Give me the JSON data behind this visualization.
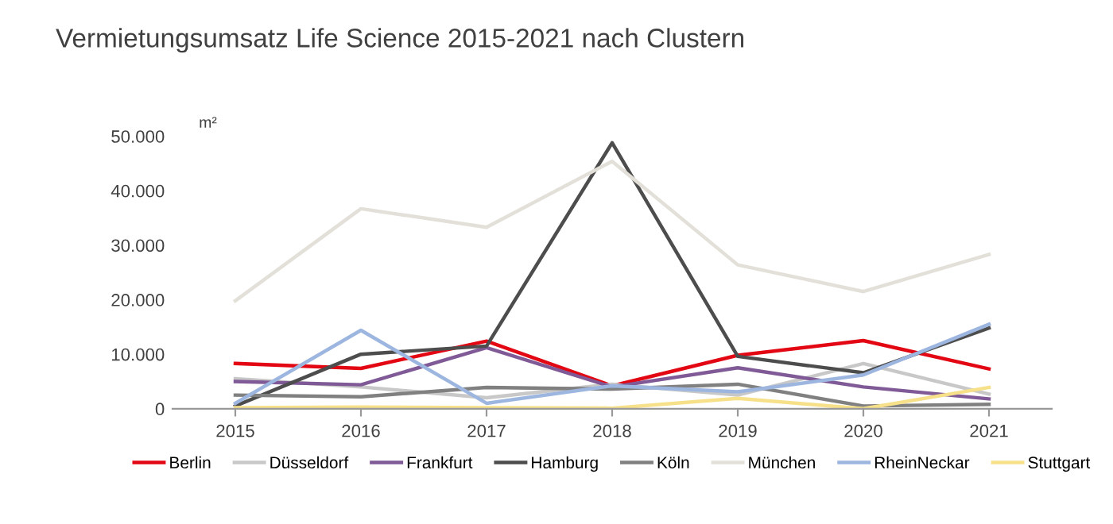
{
  "chart_data": {
    "type": "line",
    "title": "Vermietungsumsatz Life Science 2015-2021 nach Clustern",
    "ylabel": "m²",
    "categories": [
      "2015",
      "2016",
      "2017",
      "2018",
      "2019",
      "2020",
      "2021"
    ],
    "series": [
      {
        "name": "Berlin",
        "color": "#e30613",
        "values": [
          8300,
          7400,
          12400,
          4200,
          9800,
          12500,
          7300
        ]
      },
      {
        "name": "Düsseldorf",
        "color": "#c8c8c8",
        "values": [
          5500,
          4000,
          2000,
          4500,
          2500,
          8300,
          2700
        ]
      },
      {
        "name": "Frankfurt",
        "color": "#7f5a96",
        "values": [
          5000,
          4400,
          11200,
          4000,
          7500,
          4000,
          1800
        ]
      },
      {
        "name": "Hamburg",
        "color": "#4d4d4d",
        "values": [
          500,
          10000,
          11500,
          48800,
          9600,
          6600,
          14800
        ]
      },
      {
        "name": "Köln",
        "color": "#808080",
        "values": [
          2500,
          2200,
          3900,
          3600,
          4500,
          500,
          800
        ]
      },
      {
        "name": "München",
        "color": "#e2e0d8",
        "values": [
          19800,
          36700,
          33300,
          45400,
          26400,
          21500,
          28300
        ]
      },
      {
        "name": "RheinNeckar",
        "color": "#9db6e0",
        "values": [
          1000,
          14400,
          1000,
          4200,
          3100,
          6200,
          15500
        ]
      },
      {
        "name": "Stuttgart",
        "color": "#f7e08a",
        "values": [
          200,
          300,
          200,
          100,
          1900,
          0,
          3900
        ]
      }
    ],
    "ylim": [
      0,
      50000
    ],
    "yticks": [
      {
        "value": 0,
        "label": "0"
      },
      {
        "value": 10000,
        "label": "10.000"
      },
      {
        "value": 20000,
        "label": "20.000"
      },
      {
        "value": 30000,
        "label": "30.000"
      },
      {
        "value": 40000,
        "label": "40.000"
      },
      {
        "value": 50000,
        "label": "50.000"
      }
    ],
    "grid": false,
    "legend": "bottom",
    "marker": "none",
    "line_style": "solid"
  }
}
